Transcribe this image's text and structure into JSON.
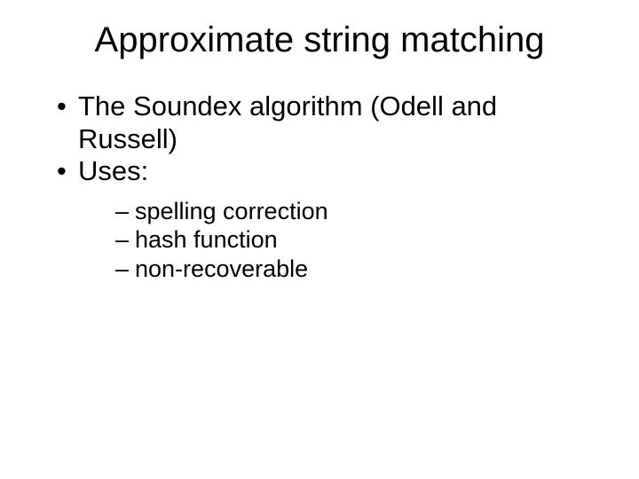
{
  "background_color": "#ffffff",
  "text_color": "#000000",
  "font_family": "Arial, Helvetica, sans-serif",
  "title": {
    "text": "Approximate string matching",
    "fontsize": 40,
    "font_weight": "400"
  },
  "bullets": {
    "level1_fontsize": 31,
    "level2_fontsize": 27,
    "items": [
      {
        "text": "The Soundex algorithm (Odell and Russell)"
      },
      {
        "text": "Uses:"
      }
    ],
    "sub_items": [
      {
        "text": "spelling correction"
      },
      {
        "text": "hash function"
      },
      {
        "text": "non-recoverable"
      }
    ]
  }
}
